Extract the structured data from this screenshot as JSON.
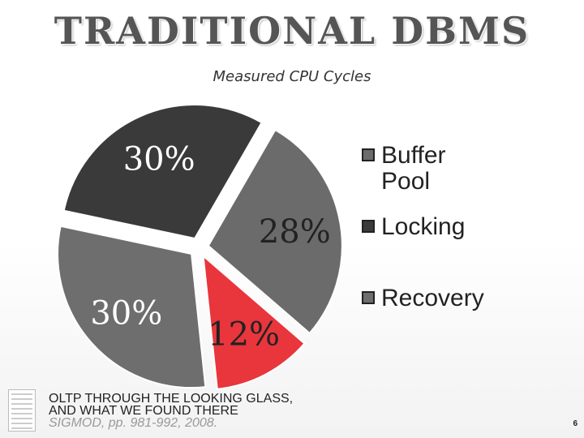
{
  "slide": {
    "title": "TRADITIONAL DBMS",
    "page_number": "6"
  },
  "citation": {
    "line1": "OLTP THROUGH THE LOOKING GLASS,",
    "line2": "AND WHAT WE FOUND THERE",
    "venue": "SIGMOD, pp. 981-992, 2008."
  },
  "chart_data": {
    "type": "pie",
    "title": "Measured CPU Cycles",
    "slices": [
      {
        "name": "Buffer Pool",
        "value": 28,
        "label": "28%",
        "color": "#6b6b6b",
        "label_color": "#222222"
      },
      {
        "name": "",
        "value": 12,
        "label": "12%",
        "color": "#e8363c",
        "label_color": "#222222"
      },
      {
        "name": "",
        "value": 30,
        "label": "30%",
        "color": "#6e6e6e",
        "label_color": "#ffffff"
      },
      {
        "name": "",
        "value": 30,
        "label": "30%",
        "color": "#3a3a3a",
        "label_color": "#ffffff"
      }
    ],
    "legend": {
      "placement": "right",
      "entries": [
        {
          "label": "Buffer Pool",
          "color": "#6b6b6b"
        },
        {
          "label": "Locking",
          "color": "#3a3a3a"
        },
        {
          "label": "Recovery",
          "color": "#6e6e6e"
        }
      ]
    }
  }
}
